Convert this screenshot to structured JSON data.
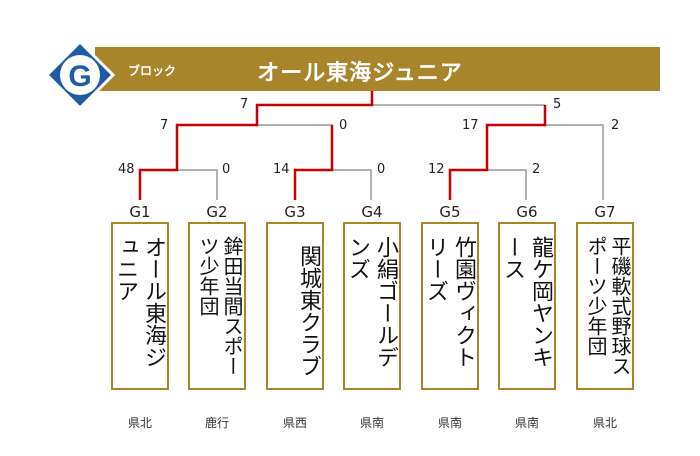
{
  "header": {
    "block_letter": "G",
    "block_suffix": "ブロック",
    "title": "オール東海ジュニア",
    "colors": {
      "gold": "#a8852a",
      "badge_blue": "#1f5aa6",
      "win_line": "#cc0000",
      "line": "#999999"
    }
  },
  "teams": [
    {
      "code": "G1",
      "name": "オール東海ジュニア",
      "region": "県北",
      "score": "48"
    },
    {
      "code": "G2",
      "name": "鉾田当間スポーツ少年団",
      "region": "鹿行",
      "score": "0"
    },
    {
      "code": "G3",
      "name": "関城東クラブ",
      "region": "県西",
      "score": "14"
    },
    {
      "code": "G4",
      "name": "小絹ゴールデンズ",
      "region": "県南",
      "score": "0"
    },
    {
      "code": "G5",
      "name": "竹園ヴィクトリーズ",
      "region": "県南",
      "score": "12"
    },
    {
      "code": "G6",
      "name": "龍ケ岡ヤンキース",
      "region": "県南",
      "score": "2"
    },
    {
      "code": "G7",
      "name": "平磯軟式野球スポーツ少年団",
      "region": "県北",
      "score": "2"
    }
  ],
  "round2": {
    "left_upper": "7",
    "left_lower": "0",
    "right_upper": "17",
    "right_lower": "2"
  },
  "final": {
    "left": "7",
    "right": "5"
  }
}
